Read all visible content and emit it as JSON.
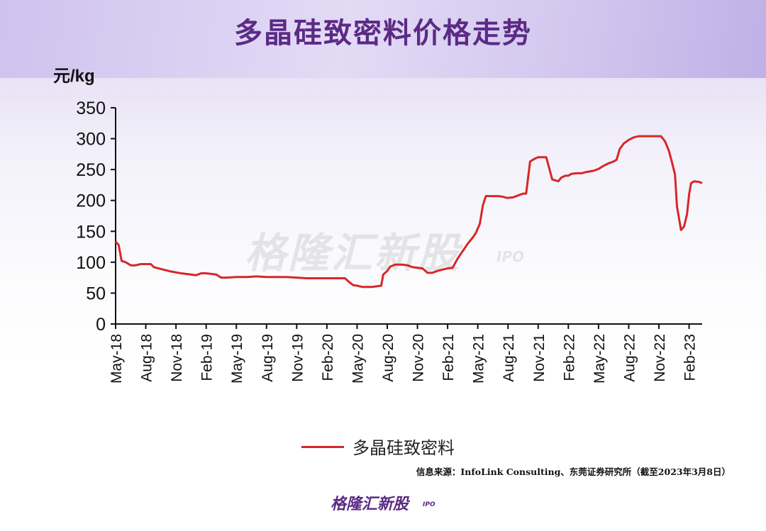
{
  "title": "多晶硅致密料价格走势",
  "watermark": {
    "text": "格隆汇新股",
    "suffix": "IPO"
  },
  "footer": {
    "logo_text": "格隆汇新股",
    "logo_suffix": "IPO"
  },
  "source_note": "信息来源：InfoLink Consulting、东莞证券研究所（截至2023年3月8日）",
  "colors": {
    "line": "#d62728",
    "title": "#5b2a86"
  },
  "chart_data": {
    "type": "line",
    "title": "多晶硅致密料价格走势",
    "ylabel": "元/kg",
    "xlabel": "",
    "ylim": [
      0,
      350
    ],
    "yticks": [
      0,
      50,
      100,
      150,
      200,
      250,
      300,
      350
    ],
    "xlim_month_index": [
      0,
      58.3
    ],
    "xtick_labels": [
      "May-18",
      "Aug-18",
      "Nov-18",
      "Feb-19",
      "May-19",
      "Aug-19",
      "Nov-19",
      "Feb-20",
      "May-20",
      "Aug-20",
      "Nov-20",
      "Feb-21",
      "May-21",
      "Aug-21",
      "Nov-21",
      "Feb-22",
      "May-22",
      "Aug-22",
      "Nov-22",
      "Feb-23"
    ],
    "xtick_month_index": [
      0,
      3,
      6,
      9,
      12,
      15,
      18,
      21,
      24,
      27,
      30,
      33,
      36,
      39,
      42,
      45,
      48,
      51,
      54,
      57
    ],
    "legend": [
      "多晶硅致密料"
    ],
    "legend_position": "bottom-center",
    "grid": false,
    "series": [
      {
        "name": "多晶硅致密料",
        "points": [
          [
            0,
            133
          ],
          [
            0.3,
            128
          ],
          [
            0.6,
            102
          ],
          [
            1.0,
            100
          ],
          [
            1.5,
            95
          ],
          [
            2.0,
            95
          ],
          [
            2.5,
            97
          ],
          [
            3.0,
            97
          ],
          [
            3.5,
            97
          ],
          [
            3.8,
            92
          ],
          [
            4.5,
            89
          ],
          [
            5.5,
            85
          ],
          [
            6.5,
            82
          ],
          [
            7.5,
            80
          ],
          [
            8.0,
            79
          ],
          [
            8.5,
            82
          ],
          [
            9.0,
            82
          ],
          [
            9.5,
            81
          ],
          [
            10.0,
            80
          ],
          [
            10.5,
            75
          ],
          [
            11.0,
            75
          ],
          [
            12.0,
            76
          ],
          [
            13.0,
            76
          ],
          [
            14.0,
            77
          ],
          [
            15.0,
            76
          ],
          [
            16.0,
            76
          ],
          [
            17.0,
            76
          ],
          [
            18.0,
            75
          ],
          [
            19.0,
            74
          ],
          [
            20.0,
            74
          ],
          [
            21.0,
            74
          ],
          [
            22.0,
            74
          ],
          [
            22.8,
            74
          ],
          [
            23.2,
            68
          ],
          [
            23.6,
            63
          ],
          [
            24.0,
            62
          ],
          [
            24.5,
            60
          ],
          [
            25.0,
            60
          ],
          [
            25.5,
            60
          ],
          [
            26.0,
            61
          ],
          [
            26.4,
            62
          ],
          [
            26.6,
            80
          ],
          [
            27.0,
            86
          ],
          [
            27.3,
            93
          ],
          [
            27.8,
            96
          ],
          [
            28.5,
            96
          ],
          [
            29.0,
            95
          ],
          [
            29.5,
            92
          ],
          [
            30.0,
            91
          ],
          [
            30.5,
            90
          ],
          [
            31.0,
            83
          ],
          [
            31.5,
            83
          ],
          [
            32.0,
            86
          ],
          [
            32.5,
            88
          ],
          [
            33.0,
            90
          ],
          [
            33.5,
            91
          ],
          [
            34.0,
            106
          ],
          [
            34.5,
            118
          ],
          [
            35.0,
            130
          ],
          [
            35.5,
            140
          ],
          [
            35.8,
            147
          ],
          [
            36.2,
            162
          ],
          [
            36.5,
            192
          ],
          [
            36.8,
            207
          ],
          [
            37.2,
            207
          ],
          [
            38.0,
            207
          ],
          [
            38.5,
            206
          ],
          [
            38.9,
            204
          ],
          [
            39.5,
            205
          ],
          [
            40.0,
            208
          ],
          [
            40.5,
            211
          ],
          [
            40.8,
            211
          ],
          [
            41.2,
            263
          ],
          [
            41.6,
            267
          ],
          [
            42.0,
            270
          ],
          [
            42.5,
            270
          ],
          [
            42.8,
            270
          ],
          [
            43.1,
            252
          ],
          [
            43.4,
            234
          ],
          [
            43.8,
            232
          ],
          [
            44.0,
            231
          ],
          [
            44.3,
            237
          ],
          [
            44.7,
            240
          ],
          [
            45.0,
            240
          ],
          [
            45.3,
            243
          ],
          [
            45.8,
            244
          ],
          [
            46.3,
            244
          ],
          [
            46.8,
            246
          ],
          [
            47.5,
            248
          ],
          [
            48.0,
            251
          ],
          [
            48.5,
            256
          ],
          [
            49.0,
            260
          ],
          [
            49.5,
            263
          ],
          [
            49.8,
            266
          ],
          [
            50.1,
            283
          ],
          [
            50.5,
            292
          ],
          [
            51.0,
            298
          ],
          [
            51.5,
            302
          ],
          [
            52.0,
            304
          ],
          [
            52.5,
            304
          ],
          [
            53.0,
            304
          ],
          [
            53.5,
            304
          ],
          [
            54.0,
            304
          ],
          [
            54.2,
            304
          ],
          [
            54.6,
            296
          ],
          [
            55.0,
            280
          ],
          [
            55.3,
            262
          ],
          [
            55.6,
            242
          ],
          [
            55.8,
            190
          ],
          [
            56.2,
            152
          ],
          [
            56.5,
            158
          ],
          [
            56.8,
            178
          ],
          [
            57.0,
            210
          ],
          [
            57.2,
            228
          ],
          [
            57.5,
            231
          ],
          [
            58.0,
            230
          ],
          [
            58.3,
            228
          ]
        ]
      }
    ]
  }
}
